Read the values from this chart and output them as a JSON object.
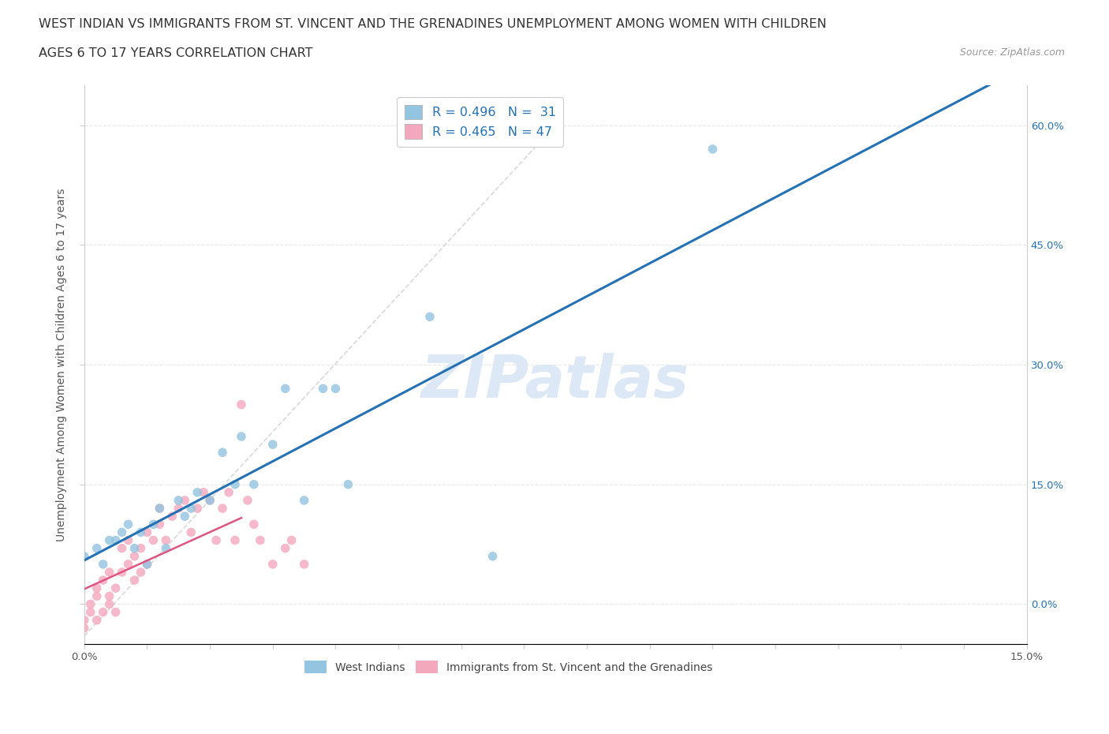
{
  "title_line1": "WEST INDIAN VS IMMIGRANTS FROM ST. VINCENT AND THE GRENADINES UNEMPLOYMENT AMONG WOMEN WITH CHILDREN",
  "title_line2": "AGES 6 TO 17 YEARS CORRELATION CHART",
  "source_text": "Source: ZipAtlas.com",
  "ylabel": "Unemployment Among Women with Children Ages 6 to 17 years",
  "xlim": [
    0.0,
    0.15
  ],
  "ylim": [
    -0.05,
    0.65
  ],
  "legend_r1": "R = 0.496",
  "legend_n1": "N =  31",
  "legend_r2": "R = 0.465",
  "legend_n2": "N = 47",
  "color_blue": "#93c4e0",
  "color_pink": "#f4a8be",
  "color_blue_line": "#2471b5",
  "color_pink_line": "#e05580",
  "color_pink_dash": "#dda0b0",
  "color_watermark": "#dce8f5",
  "wi_x": [
    0.0,
    0.002,
    0.003,
    0.004,
    0.005,
    0.006,
    0.007,
    0.008,
    0.009,
    0.01,
    0.011,
    0.012,
    0.013,
    0.015,
    0.016,
    0.017,
    0.018,
    0.02,
    0.022,
    0.024,
    0.025,
    0.027,
    0.03,
    0.032,
    0.035,
    0.038,
    0.04,
    0.042,
    0.055,
    0.065,
    0.1
  ],
  "wi_y": [
    0.06,
    0.07,
    0.05,
    0.08,
    0.08,
    0.09,
    0.1,
    0.07,
    0.09,
    0.05,
    0.1,
    0.12,
    0.07,
    0.13,
    0.11,
    0.12,
    0.14,
    0.13,
    0.19,
    0.15,
    0.21,
    0.15,
    0.2,
    0.27,
    0.13,
    0.27,
    0.27,
    0.15,
    0.36,
    0.06,
    0.57
  ],
  "svg_x": [
    0.0,
    0.0,
    0.001,
    0.001,
    0.002,
    0.002,
    0.002,
    0.003,
    0.003,
    0.004,
    0.004,
    0.004,
    0.005,
    0.005,
    0.006,
    0.006,
    0.007,
    0.007,
    0.008,
    0.008,
    0.009,
    0.009,
    0.01,
    0.01,
    0.011,
    0.012,
    0.012,
    0.013,
    0.014,
    0.015,
    0.016,
    0.017,
    0.018,
    0.019,
    0.02,
    0.021,
    0.022,
    0.023,
    0.024,
    0.025,
    0.026,
    0.027,
    0.028,
    0.03,
    0.032,
    0.033,
    0.035
  ],
  "svg_y": [
    -0.02,
    -0.03,
    -0.01,
    0.0,
    -0.02,
    0.01,
    0.02,
    -0.01,
    0.03,
    0.0,
    0.01,
    0.04,
    -0.01,
    0.02,
    0.04,
    0.07,
    0.05,
    0.08,
    0.03,
    0.06,
    0.04,
    0.07,
    0.05,
    0.09,
    0.08,
    0.1,
    0.12,
    0.08,
    0.11,
    0.12,
    0.13,
    0.09,
    0.12,
    0.14,
    0.13,
    0.08,
    0.12,
    0.14,
    0.08,
    0.25,
    0.13,
    0.1,
    0.08,
    0.05,
    0.07,
    0.08,
    0.05
  ],
  "background_color": "#ffffff",
  "grid_color": "#e8e8e8"
}
